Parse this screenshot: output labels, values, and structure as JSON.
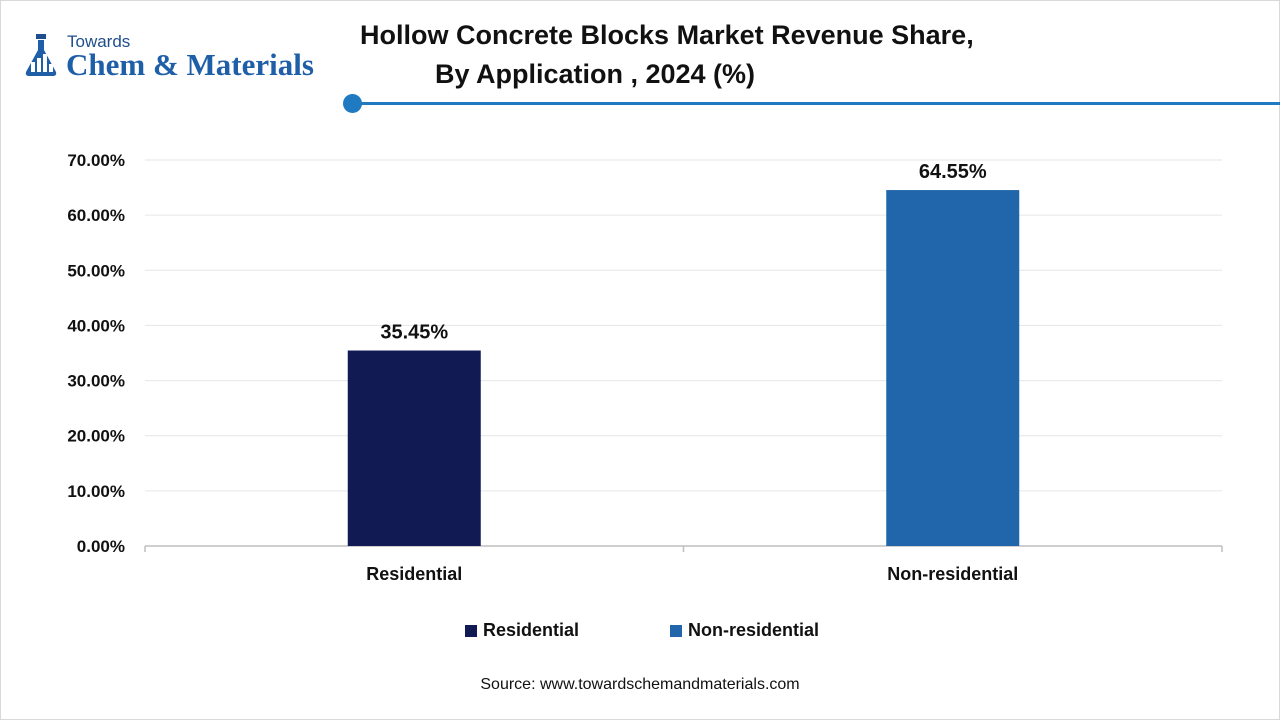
{
  "logo": {
    "line1": "Towards",
    "line2": "Chem & Materials"
  },
  "title": {
    "line1": "Hollow Concrete Blocks Market Revenue Share,",
    "line2": "By Application , 2024 (%)"
  },
  "colors": {
    "accent": "#1f7ac2",
    "residential": "#111a52",
    "non_residential": "#2166aa",
    "gridline": "#e6e6e6",
    "axis": "#bfbfbf"
  },
  "chart_data": {
    "type": "bar",
    "categories": [
      "Residential",
      "Non-residential"
    ],
    "values": [
      35.45,
      64.55
    ],
    "data_labels": [
      "35.45%",
      "64.55%"
    ],
    "yticks": [
      "0.00%",
      "10.00%",
      "20.00%",
      "30.00%",
      "40.00%",
      "50.00%",
      "60.00%",
      "70.00%"
    ],
    "ylim": [
      0,
      70
    ],
    "grid": true,
    "legend_position": "bottom-center",
    "legend": [
      "Residential",
      "Non-residential"
    ]
  },
  "source": "Source: www.towardschemandmaterials.com"
}
